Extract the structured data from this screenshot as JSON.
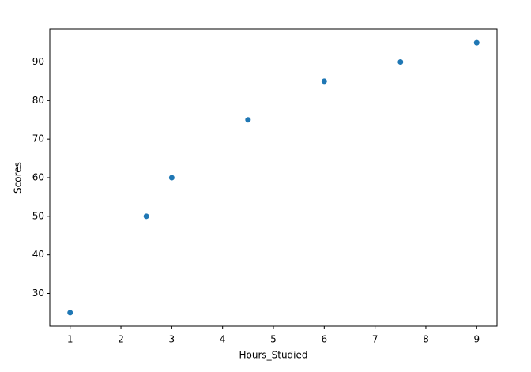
{
  "chart_data": {
    "type": "scatter",
    "x_label": "Hours_Studied",
    "y_label": "Scores",
    "series": [
      {
        "x": [
          1,
          2.5,
          3,
          4.5,
          6,
          7.5,
          9
        ],
        "values": [
          25,
          50,
          60,
          75,
          85,
          90,
          95
        ],
        "color": "#1f77b4"
      }
    ],
    "xlim": [
      0.6,
      9.4
    ],
    "ylim": [
      21.5,
      98.5
    ],
    "xticks": [
      1,
      2,
      3,
      4,
      5,
      6,
      7,
      8,
      9
    ],
    "yticks": [
      30,
      40,
      50,
      60,
      70,
      80,
      90
    ],
    "grid": false
  }
}
